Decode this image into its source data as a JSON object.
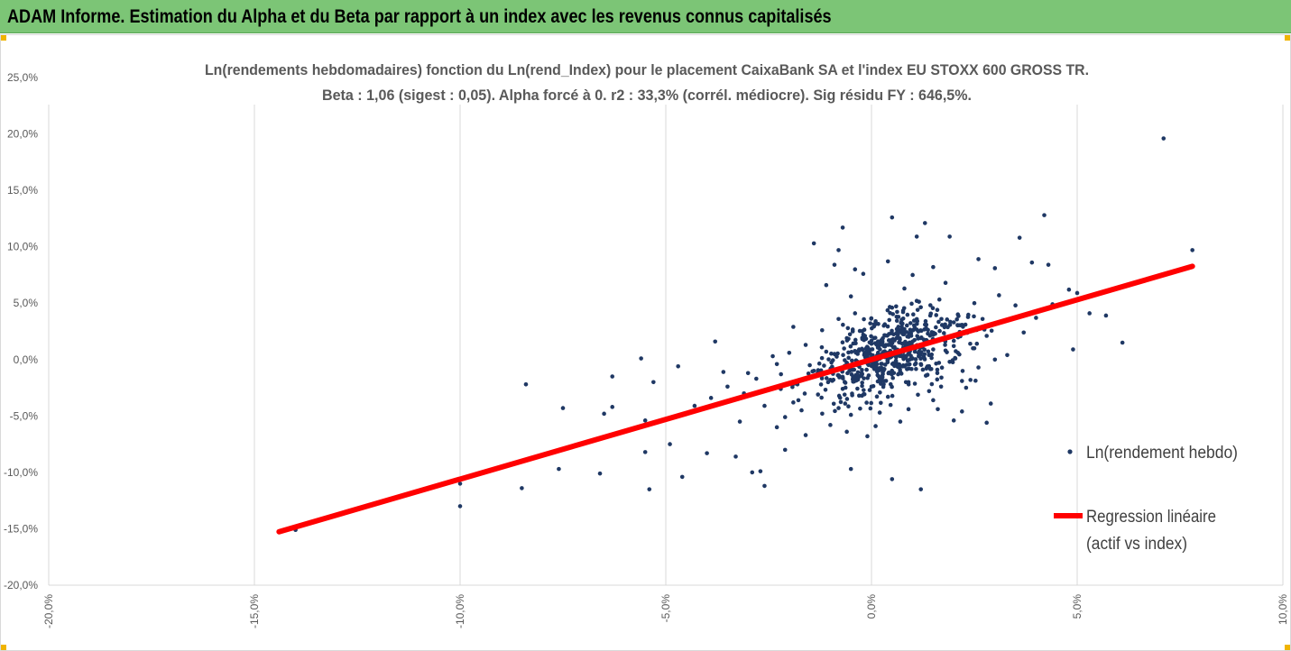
{
  "header": {
    "title": "ADAM Informe. Estimation du Alpha et du Beta par rapport à un index avec les revenus connus capitalisés"
  },
  "colors": {
    "header_bg": "#7cc576",
    "points": "#1f3864",
    "regression": "#ff0000",
    "grid": "#d9d9d9",
    "corner_marks": "#f0b400"
  },
  "chart_data": {
    "type": "scatter",
    "title_line1": "Ln(rendements hebdomadaires) fonction du Ln(rend_Index) pour le placement CaixaBank SA et l'index EU STOXX 600 GROSS TR.",
    "title_line2": "Beta : 1,06 (sigest : 0,05). Alpha forcé à 0. r2 : 33,3% (corrél. médiocre). Sig résidu FY : 646,5%.",
    "xlim": [
      -20,
      10
    ],
    "ylim": [
      -20,
      25
    ],
    "x_ticks": [
      "-20,0%",
      "-15,0%",
      "-10,0%",
      "-5,0%",
      "0,0%",
      "5,0%",
      "10,0%"
    ],
    "y_ticks": [
      "25,0%",
      "20,0%",
      "15,0%",
      "10,0%",
      "5,0%",
      "0,0%",
      "-5,0%",
      "-10,0%",
      "-15,0%",
      "-20,0%"
    ],
    "grid": "vertical",
    "legend_position": "right",
    "legend": [
      {
        "label": "Ln(rendement hebdo)",
        "kind": "marker"
      },
      {
        "label": "Regression linéaire",
        "label2": "(actif vs index)",
        "kind": "line"
      }
    ],
    "regression": {
      "slope": 1.06,
      "intercept": 0,
      "x_range": [
        -14.4,
        7.8
      ]
    },
    "points": [
      [
        -14.4,
        -15.3
      ],
      [
        -14.0,
        -15.1
      ],
      [
        -10.0,
        -13.0
      ],
      [
        -10.0,
        -11.0
      ],
      [
        -8.5,
        -11.4
      ],
      [
        -8.4,
        -2.2
      ],
      [
        -7.5,
        -4.3
      ],
      [
        -7.6,
        -9.7
      ],
      [
        -6.6,
        -10.1
      ],
      [
        -6.5,
        -4.8
      ],
      [
        -6.3,
        -4.2
      ],
      [
        -6.3,
        -1.5
      ],
      [
        -5.6,
        0.1
      ],
      [
        -5.5,
        -8.2
      ],
      [
        -5.4,
        -11.5
      ],
      [
        -5.3,
        -2.0
      ],
      [
        -4.9,
        -7.5
      ],
      [
        -4.7,
        -0.6
      ],
      [
        -4.6,
        -10.4
      ],
      [
        -4.0,
        -8.3
      ],
      [
        -3.8,
        1.6
      ],
      [
        -3.6,
        -1.1
      ],
      [
        -3.2,
        -5.5
      ],
      [
        -3.3,
        -8.6
      ],
      [
        -2.9,
        -10.0
      ],
      [
        -2.7,
        -9.9
      ],
      [
        -2.6,
        -11.2
      ],
      [
        -2.4,
        0.3
      ],
      [
        -2.3,
        -6.0
      ],
      [
        -2.1,
        -8.0
      ],
      [
        -1.9,
        2.9
      ],
      [
        -1.7,
        -4.5
      ],
      [
        -1.4,
        10.3
      ],
      [
        -1.1,
        6.6
      ],
      [
        -0.9,
        8.4
      ],
      [
        -0.8,
        9.7
      ],
      [
        -0.7,
        11.7
      ],
      [
        -0.6,
        -6.4
      ],
      [
        -0.5,
        5.6
      ],
      [
        -0.5,
        -9.7
      ],
      [
        -0.4,
        8.0
      ],
      [
        -0.3,
        -3.2
      ],
      [
        -0.2,
        7.6
      ],
      [
        -0.1,
        -6.8
      ],
      [
        0.2,
        -4.7
      ],
      [
        0.3,
        3.0
      ],
      [
        0.4,
        8.7
      ],
      [
        0.5,
        12.6
      ],
      [
        0.5,
        -10.6
      ],
      [
        0.7,
        -5.5
      ],
      [
        0.8,
        6.3
      ],
      [
        1.0,
        7.5
      ],
      [
        1.1,
        10.9
      ],
      [
        1.2,
        -11.5
      ],
      [
        1.3,
        12.1
      ],
      [
        1.5,
        8.2
      ],
      [
        1.6,
        -1.2
      ],
      [
        1.7,
        3.6
      ],
      [
        1.8,
        6.8
      ],
      [
        1.9,
        10.9
      ],
      [
        2.0,
        -5.4
      ],
      [
        2.1,
        4.0
      ],
      [
        2.3,
        -2.5
      ],
      [
        2.4,
        1.4
      ],
      [
        2.5,
        5.0
      ],
      [
        2.6,
        8.9
      ],
      [
        2.7,
        3.6
      ],
      [
        2.8,
        -5.6
      ],
      [
        2.9,
        -3.9
      ],
      [
        3.0,
        8.1
      ],
      [
        3.1,
        5.7
      ],
      [
        3.3,
        0.4
      ],
      [
        3.5,
        4.8
      ],
      [
        3.6,
        10.8
      ],
      [
        3.7,
        2.4
      ],
      [
        3.9,
        8.6
      ],
      [
        4.0,
        3.7
      ],
      [
        4.2,
        12.8
      ],
      [
        4.3,
        8.4
      ],
      [
        4.4,
        4.9
      ],
      [
        4.8,
        6.2
      ],
      [
        4.9,
        0.9
      ],
      [
        5.0,
        5.9
      ],
      [
        5.3,
        4.1
      ],
      [
        5.7,
        3.9
      ],
      [
        6.1,
        1.5
      ],
      [
        7.1,
        19.6
      ],
      [
        7.8,
        9.7
      ],
      [
        -5.5,
        -5.4
      ],
      [
        -4.3,
        -4.1
      ],
      [
        -3.9,
        -3.4
      ],
      [
        -3.5,
        -2.4
      ],
      [
        -3.1,
        -3.0
      ],
      [
        -2.8,
        -1.7
      ],
      [
        -2.5,
        -2.6
      ],
      [
        -2.2,
        -1.3
      ],
      [
        -2.0,
        0.6
      ],
      [
        -1.8,
        -2.2
      ],
      [
        -1.6,
        1.3
      ],
      [
        -1.5,
        -0.5
      ],
      [
        -1.3,
        -3.1
      ],
      [
        -1.2,
        2.6
      ],
      [
        -1.0,
        -1.8
      ],
      [
        -0.9,
        0.5
      ],
      [
        -0.8,
        3.6
      ],
      [
        -0.7,
        -2.6
      ],
      [
        -0.6,
        1.9
      ],
      [
        -0.5,
        -0.9
      ],
      [
        -0.4,
        4.1
      ],
      [
        -0.3,
        -1.5
      ],
      [
        -0.2,
        2.2
      ],
      [
        -0.1,
        0.3
      ],
      [
        0.0,
        -2.4
      ],
      [
        0.1,
        3.4
      ],
      [
        0.2,
        -0.8
      ],
      [
        0.3,
        1.2
      ],
      [
        0.4,
        -3.3
      ],
      [
        0.5,
        4.6
      ],
      [
        0.6,
        0.2
      ],
      [
        0.7,
        -1.1
      ],
      [
        0.8,
        2.7
      ],
      [
        0.9,
        -2.0
      ],
      [
        1.0,
        1.6
      ],
      [
        1.1,
        5.2
      ],
      [
        1.2,
        -0.4
      ],
      [
        1.3,
        3.1
      ],
      [
        1.4,
        -2.8
      ],
      [
        1.5,
        0.9
      ],
      [
        1.6,
        4.4
      ],
      [
        1.7,
        -1.6
      ],
      [
        1.8,
        2.0
      ],
      [
        1.9,
        -0.2
      ],
      [
        2.0,
        3.3
      ],
      [
        2.1,
        0.6
      ],
      [
        2.2,
        -1.9
      ],
      [
        2.3,
        2.5
      ],
      [
        2.5,
        1.0
      ],
      [
        2.6,
        -0.7
      ],
      [
        2.8,
        2.1
      ],
      [
        3.0,
        0.0
      ],
      [
        -3.0,
        -1.2
      ],
      [
        -2.6,
        -4.1
      ],
      [
        -2.3,
        -0.4
      ],
      [
        -1.9,
        -3.8
      ],
      [
        -1.4,
        -1.0
      ],
      [
        -1.1,
        0.7
      ],
      [
        -0.8,
        -4.3
      ],
      [
        -0.6,
        -0.3
      ],
      [
        -0.3,
        0.9
      ],
      [
        0.0,
        1.4
      ],
      [
        0.2,
        -1.7
      ],
      [
        0.4,
        0.6
      ],
      [
        0.6,
        2.3
      ],
      [
        0.8,
        -0.6
      ],
      [
        1.0,
        0.1
      ],
      [
        1.2,
        1.9
      ],
      [
        1.4,
        0.4
      ],
      [
        1.6,
        -0.9
      ],
      [
        1.8,
        0.8
      ],
      [
        2.0,
        1.2
      ],
      [
        -1.0,
        -5.8
      ],
      [
        -0.5,
        -4.9
      ],
      [
        0.1,
        -5.9
      ],
      [
        0.9,
        -4.4
      ],
      [
        1.5,
        -3.6
      ],
      [
        2.2,
        -4.6
      ],
      [
        -2.1,
        -5.1
      ],
      [
        -1.6,
        -6.7
      ]
    ]
  }
}
